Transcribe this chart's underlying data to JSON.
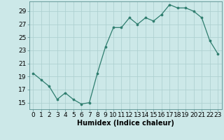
{
  "x": [
    0,
    1,
    2,
    3,
    4,
    5,
    6,
    7,
    8,
    9,
    10,
    11,
    12,
    13,
    14,
    15,
    16,
    17,
    18,
    19,
    20,
    21,
    22,
    23
  ],
  "y": [
    19.5,
    18.5,
    17.5,
    15.5,
    16.5,
    15.5,
    14.8,
    15.0,
    19.5,
    23.5,
    26.5,
    26.5,
    28.0,
    27.0,
    28.0,
    27.5,
    28.5,
    30.0,
    29.5,
    29.5,
    29.0,
    28.0,
    24.5,
    22.5
  ],
  "xlabel": "Humidex (Indice chaleur)",
  "xlim": [
    -0.5,
    23.5
  ],
  "ylim": [
    14,
    30.5
  ],
  "yticks": [
    15,
    17,
    19,
    21,
    23,
    25,
    27,
    29
  ],
  "xticks": [
    0,
    1,
    2,
    3,
    4,
    5,
    6,
    7,
    8,
    9,
    10,
    11,
    12,
    13,
    14,
    15,
    16,
    17,
    18,
    19,
    20,
    21,
    22,
    23
  ],
  "line_color": "#2e7d6e",
  "marker_color": "#2e7d6e",
  "bg_color": "#cce8e8",
  "grid_color": "#aacece",
  "spine_color": "#5a9090",
  "xlabel_fontsize": 7,
  "tick_fontsize": 6.5,
  "line_width": 0.9,
  "marker_size": 2.2
}
